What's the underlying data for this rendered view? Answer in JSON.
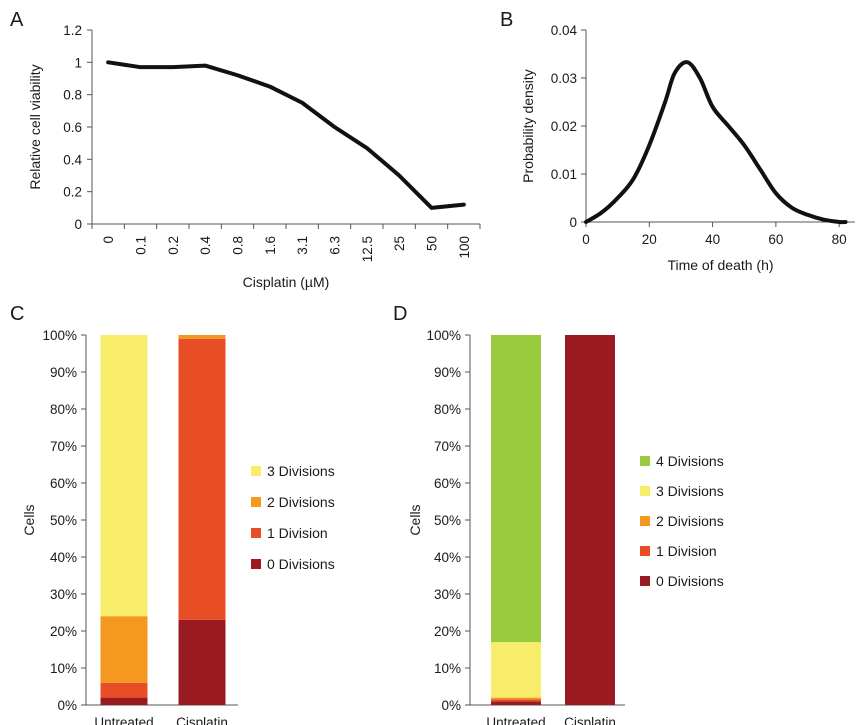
{
  "panels": {
    "a": "A",
    "b": "B",
    "c": "C",
    "d": "D"
  },
  "colors": {
    "line": "#111111",
    "axis": "#555555",
    "div4": "#99c93c",
    "div3": "#f8ed6a",
    "div2": "#f5981f",
    "div1": "#e84e26",
    "div0": "#9a1a22"
  },
  "chart_data": [
    {
      "type": "line",
      "xlabel": "Cisplatin (µM)",
      "ylabel": "Relative cell viability",
      "categories": [
        "0",
        "0.1",
        "0.2",
        "0.4",
        "0.8",
        "1.6",
        "3.1",
        "6.3",
        "12.5",
        "25",
        "50",
        "100"
      ],
      "values": [
        1.0,
        0.97,
        0.97,
        0.98,
        0.92,
        0.85,
        0.75,
        0.6,
        0.47,
        0.3,
        0.1,
        0.12
      ],
      "ylim": [
        0,
        1.2
      ],
      "yticks": [
        "0",
        "0.2",
        "0.4",
        "0.6",
        "0.8",
        "1",
        "1.2"
      ],
      "grid": false
    },
    {
      "type": "line",
      "xlabel": "Time of death (h)",
      "ylabel": "Probability density",
      "x": [
        0,
        5,
        10,
        15,
        20,
        25,
        28,
        32,
        36,
        40,
        45,
        50,
        55,
        60,
        65,
        70,
        75,
        80,
        82
      ],
      "y": [
        0,
        0.002,
        0.005,
        0.009,
        0.016,
        0.025,
        0.031,
        0.0333,
        0.03,
        0.024,
        0.02,
        0.016,
        0.011,
        0.006,
        0.003,
        0.0015,
        0.0005,
        0.0,
        0.0
      ],
      "xlim": [
        0,
        85
      ],
      "ylim": [
        0,
        0.04
      ],
      "xticks": [
        "0",
        "20",
        "40",
        "60",
        "80"
      ],
      "yticks": [
        "0",
        "0.01",
        "0.02",
        "0.03",
        "0.04"
      ],
      "grid": false
    },
    {
      "type": "bar",
      "stacked": true,
      "ylabel": "Cells",
      "categories": [
        "Untreated",
        "Cisplatin"
      ],
      "yticks": [
        "0%",
        "10%",
        "20%",
        "30%",
        "40%",
        "50%",
        "60%",
        "70%",
        "80%",
        "90%",
        "100%"
      ],
      "ylim": [
        0,
        100
      ],
      "legend_position": "right",
      "series": [
        {
          "name": "0 Divisions",
          "values": [
            2,
            23
          ]
        },
        {
          "name": "1 Division",
          "values": [
            4,
            76
          ]
        },
        {
          "name": "2 Divisions",
          "values": [
            18,
            1
          ]
        },
        {
          "name": "3 Divisions",
          "values": [
            76,
            0
          ]
        }
      ]
    },
    {
      "type": "bar",
      "stacked": true,
      "ylabel": "Cells",
      "categories": [
        "Untreated",
        "Cisplatin"
      ],
      "yticks": [
        "0%",
        "10%",
        "20%",
        "30%",
        "40%",
        "50%",
        "60%",
        "70%",
        "80%",
        "90%",
        "100%"
      ],
      "ylim": [
        0,
        100
      ],
      "legend_position": "right",
      "series": [
        {
          "name": "0 Divisions",
          "values": [
            1,
            100
          ]
        },
        {
          "name": "1 Division",
          "values": [
            0.5,
            0
          ]
        },
        {
          "name": "2 Divisions",
          "values": [
            0.5,
            0
          ]
        },
        {
          "name": "3 Divisions",
          "values": [
            15,
            0
          ]
        },
        {
          "name": "4 Divisions",
          "values": [
            83,
            0
          ]
        }
      ]
    }
  ]
}
